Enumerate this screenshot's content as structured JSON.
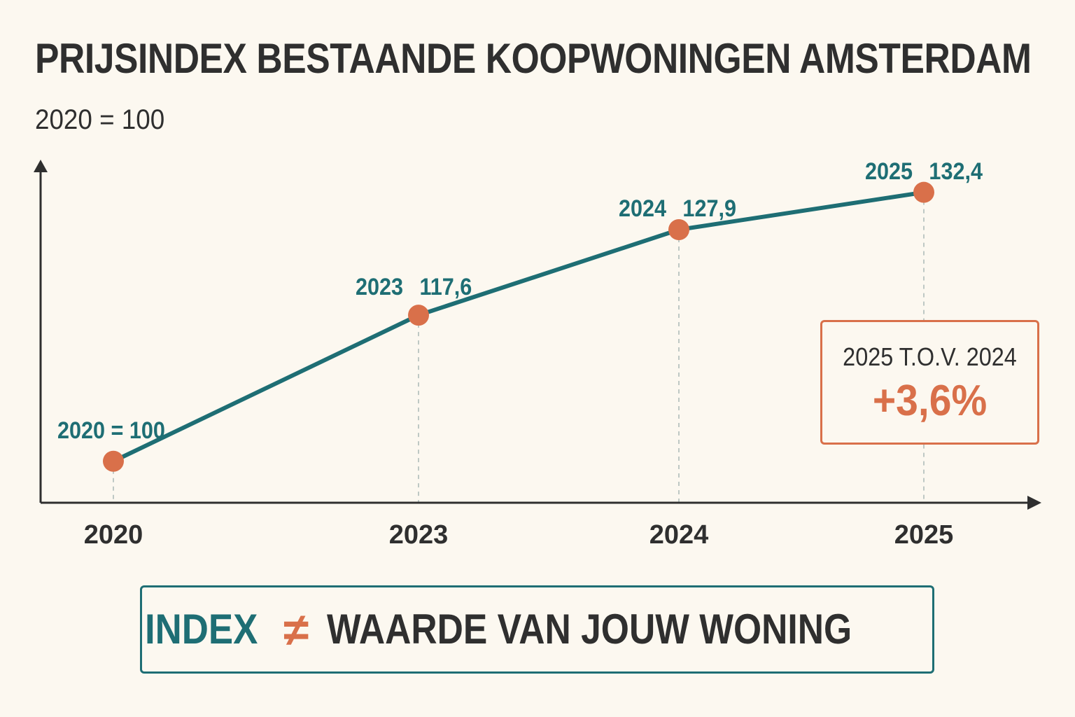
{
  "title": "PRIJSINDEX BESTAANDE KOOPWONINGEN AMSTERDAM",
  "subtitle": "2020 = 100",
  "colors": {
    "line": "#1e6e74",
    "point": "#d9704a",
    "text_dark": "#2f2f2f",
    "background": "#fcf8f0"
  },
  "chart_data": {
    "type": "line",
    "categories": [
      "2020",
      "2023",
      "2024",
      "2025"
    ],
    "series": [
      {
        "values": [
          100,
          117.6,
          127.9,
          132.4
        ]
      }
    ],
    "point_labels": [
      {
        "year": "2020 = 100",
        "value": ""
      },
      {
        "year": "2023",
        "value": "117,6"
      },
      {
        "year": "2024",
        "value": "127,9"
      },
      {
        "year": "2025",
        "value": "132,4"
      }
    ],
    "title": "PRIJSINDEX BESTAANDE KOOPWONINGEN AMSTERDAM",
    "subtitle": "2020 = 100",
    "xlabel": "",
    "ylabel": "",
    "ylim": [
      95,
      136
    ],
    "grid": false,
    "legend": "none"
  },
  "callout": {
    "label": "2025 T.O.V. 2024",
    "value": "+3,6%"
  },
  "footer": {
    "index_label": "INDEX",
    "not_equal_symbol": "≠",
    "rest_label": "WAARDE VAN JOUW WONING"
  }
}
